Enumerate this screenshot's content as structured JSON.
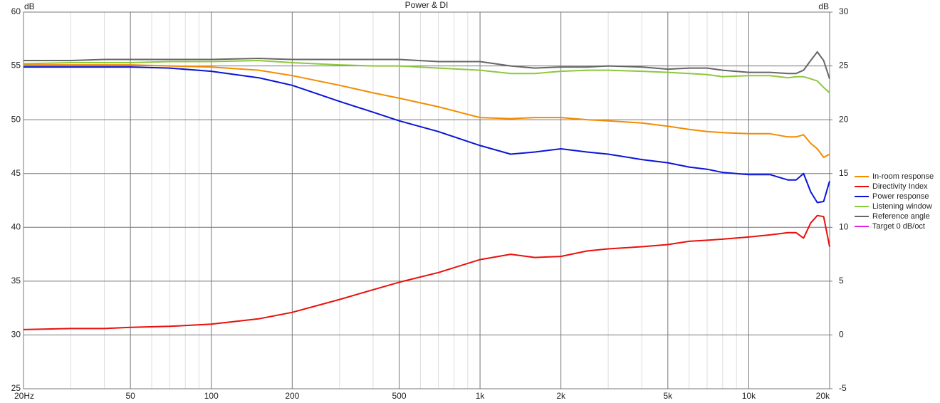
{
  "chart_data": {
    "type": "line",
    "title": "Power & DI",
    "ylabel": "dB",
    "y2label": "dB",
    "xscale": "log",
    "grid": true,
    "legend": "right",
    "x": [
      20,
      30,
      40,
      50,
      70,
      100,
      150,
      200,
      300,
      400,
      500,
      700,
      1000,
      1300,
      1600,
      2000,
      2500,
      3000,
      4000,
      5000,
      6000,
      7000,
      8000,
      10000,
      12000,
      14000,
      15000,
      16000,
      17000,
      18000,
      19000,
      20000
    ],
    "xlim": [
      20,
      20000
    ],
    "xticks": [
      {
        "value": 20,
        "label": "20Hz"
      },
      50,
      100,
      200,
      500,
      {
        "value": 1000,
        "label": "1k"
      },
      {
        "value": 2000,
        "label": "2k"
      },
      {
        "value": 5000,
        "label": "5k"
      },
      {
        "value": 10000,
        "label": "10k"
      },
      {
        "value": 20000,
        "label": "20k"
      }
    ],
    "xminorticks": [
      30,
      40,
      60,
      70,
      80,
      90,
      300,
      400,
      600,
      700,
      800,
      900,
      3000,
      4000,
      6000,
      7000,
      8000,
      9000
    ],
    "ylim": [
      25,
      60
    ],
    "yticks": [
      25,
      30,
      35,
      40,
      45,
      50,
      55,
      60
    ],
    "y2lim": [
      -5,
      30
    ],
    "y2ticks": [
      -5,
      0,
      5,
      10,
      15,
      20,
      25,
      30
    ],
    "series": [
      {
        "name": "In-room response",
        "color": "#f28c00",
        "values": [
          55.1,
          55.1,
          55.1,
          55.1,
          55.0,
          54.9,
          54.6,
          54.1,
          53.2,
          52.5,
          52.0,
          51.2,
          50.2,
          50.1,
          50.2,
          50.2,
          50.0,
          49.9,
          49.7,
          49.4,
          49.1,
          48.9,
          48.8,
          48.7,
          48.7,
          48.4,
          48.4,
          48.6,
          47.8,
          47.3,
          46.5,
          46.8
        ]
      },
      {
        "name": "Directivity Index",
        "color": "#e8100c",
        "axis": "y2",
        "values": [
          0.5,
          0.6,
          0.6,
          0.7,
          0.8,
          1.0,
          1.5,
          2.1,
          3.3,
          4.2,
          4.9,
          5.8,
          7.0,
          7.5,
          7.2,
          7.3,
          7.8,
          8.0,
          8.2,
          8.4,
          8.7,
          8.8,
          8.9,
          9.1,
          9.3,
          9.5,
          9.5,
          9.0,
          10.4,
          11.1,
          11.0,
          8.2
        ]
      },
      {
        "name": "Power response",
        "color": "#0a14d8",
        "values": [
          54.9,
          54.9,
          54.9,
          54.9,
          54.8,
          54.5,
          53.9,
          53.2,
          51.7,
          50.7,
          49.9,
          48.9,
          47.6,
          46.8,
          47.0,
          47.3,
          47.0,
          46.8,
          46.3,
          46.0,
          45.6,
          45.4,
          45.1,
          44.9,
          44.9,
          44.4,
          44.4,
          45.0,
          43.3,
          42.3,
          42.4,
          44.3
        ]
      },
      {
        "name": "Listening window",
        "color": "#8cc83c",
        "values": [
          55.2,
          55.3,
          55.3,
          55.3,
          55.4,
          55.4,
          55.5,
          55.3,
          55.1,
          55.0,
          55.0,
          54.8,
          54.6,
          54.3,
          54.3,
          54.5,
          54.6,
          54.6,
          54.5,
          54.4,
          54.3,
          54.2,
          54.0,
          54.1,
          54.1,
          53.9,
          54.0,
          54.0,
          53.8,
          53.6,
          53.0,
          52.5
        ]
      },
      {
        "name": "Reference angle",
        "color": "#666666",
        "values": [
          55.5,
          55.5,
          55.6,
          55.6,
          55.6,
          55.6,
          55.7,
          55.6,
          55.6,
          55.6,
          55.6,
          55.4,
          55.4,
          55.0,
          54.8,
          54.9,
          54.9,
          55.0,
          54.9,
          54.7,
          54.8,
          54.8,
          54.6,
          54.4,
          54.4,
          54.3,
          54.3,
          54.6,
          55.5,
          56.3,
          55.5,
          53.8
        ]
      },
      {
        "name": "Target 0 dB/oct",
        "color": "#e020e0",
        "values": [
          null,
          null,
          null,
          null,
          null,
          null,
          null,
          null,
          null,
          null,
          null,
          null,
          null,
          null,
          null,
          null,
          null,
          null,
          null,
          null,
          null,
          null,
          null,
          null,
          null,
          null,
          null,
          null,
          null,
          null,
          null,
          null
        ]
      }
    ]
  }
}
